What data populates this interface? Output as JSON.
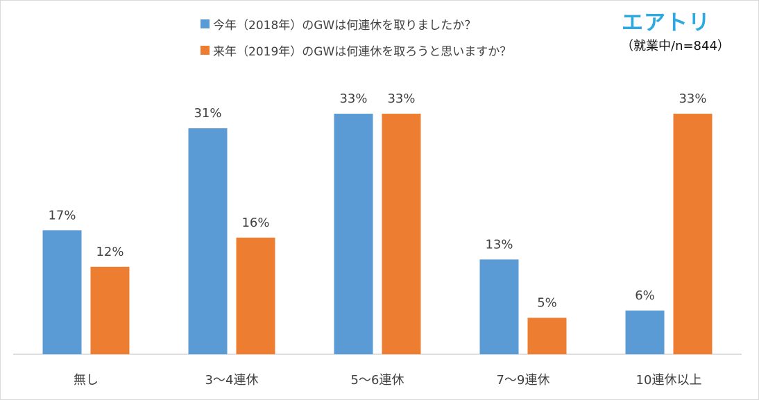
{
  "header": {
    "brand_logo": "エアトリ",
    "sample_note": "（就業中/n=844）"
  },
  "legend": [
    {
      "label": "今年（2018年）のGWは何連休を取りましたか？",
      "color": "#5b9bd5"
    },
    {
      "label": "来年（2019年）のGWは何連休を取ろうと思いますか？",
      "color": "#ed7d31"
    }
  ],
  "chart_data": {
    "type": "bar",
    "categories": [
      "無し",
      "3～4連休",
      "5～6連休",
      "7～9連休",
      "10連休以上"
    ],
    "series": [
      {
        "name": "今年（2018年）のGWは何連休を取りましたか？",
        "color": "#5b9bd5",
        "values": [
          17,
          31,
          33,
          13,
          6
        ],
        "labels": [
          "17%",
          "31%",
          "33%",
          "13%",
          "6%"
        ]
      },
      {
        "name": "来年（2019年）のGWは何連休を取ろうと思いますか？",
        "color": "#ed7d31",
        "values": [
          12,
          16,
          33,
          5,
          33
        ],
        "labels": [
          "12%",
          "16%",
          "33%",
          "5%",
          "33%"
        ]
      }
    ],
    "xlabel": "",
    "ylabel": "",
    "ylim": [
      0,
      35
    ],
    "grid": false,
    "legend_position": "top"
  }
}
